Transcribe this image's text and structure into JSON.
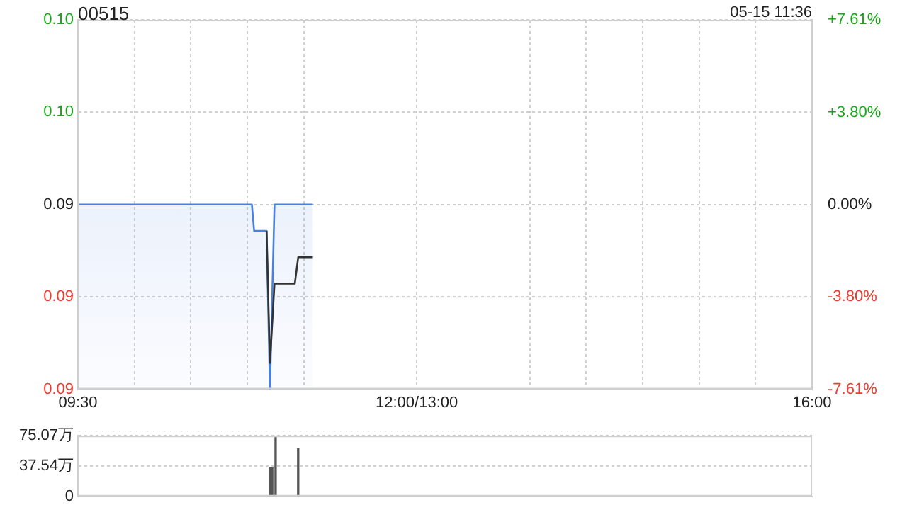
{
  "chart_data": [
    {
      "type": "line",
      "title": "00515",
      "annotations": [
        "05-15 11:36"
      ],
      "xlim": [
        9.5,
        16
      ],
      "xticks": [
        {
          "value": 9.5,
          "label": "09:30"
        },
        {
          "value": 10,
          "label": null
        },
        {
          "value": 10.5,
          "label": null
        },
        {
          "value": 11,
          "label": null
        },
        {
          "value": 11.5,
          "label": null
        },
        {
          "value": 12.5,
          "label": "12:00/13:00"
        },
        {
          "value": 13.5,
          "label": null
        },
        {
          "value": 14,
          "label": null
        },
        {
          "value": 14.5,
          "label": null
        },
        {
          "value": 15,
          "label": null
        },
        {
          "value": 15.5,
          "label": null
        },
        {
          "value": 16,
          "label": "16:00"
        }
      ],
      "ylim": [
        0.085,
        0.099
      ],
      "yticks": [
        {
          "value": 0.085,
          "label": "0.09"
        },
        {
          "value": 0.0885,
          "label": "0.09"
        },
        {
          "value": 0.092,
          "label": "0.09"
        },
        {
          "value": 0.0955,
          "label": "0.10"
        },
        {
          "value": 0.099,
          "label": "0.10"
        }
      ],
      "y2lim": [
        -7.61,
        7.61
      ],
      "y2ticks": [
        {
          "value": -7.61,
          "label": "-7.61%"
        },
        {
          "value": -3.8,
          "label": "-3.80%"
        },
        {
          "value": 0,
          "label": "0.00%"
        },
        {
          "value": 3.8,
          "label": "+3.80%"
        },
        {
          "value": 7.61,
          "label": "+7.61%"
        }
      ],
      "grid": true,
      "legend": false,
      "marker": "none",
      "series": [
        {
          "type": "area",
          "color": "#4a80e0",
          "x": [
            9.5,
            11.04,
            11.06,
            11.17,
            11.2,
            11.24,
            11.58
          ],
          "values": [
            0.092,
            0.092,
            0.091,
            0.091,
            0.085,
            0.092,
            0.092
          ]
        },
        {
          "color": "#333333",
          "x": [
            11.17,
            11.2,
            11.24,
            11.42,
            11.45,
            11.58
          ],
          "values": [
            0.091,
            0.086,
            0.089,
            0.089,
            0.09,
            0.09
          ]
        }
      ]
    },
    {
      "type": "bar",
      "xlim": [
        9.5,
        16
      ],
      "ylim": [
        0,
        75.07
      ],
      "yticks": [
        0,
        {
          "value": 37.54,
          "label": "37.54万"
        },
        {
          "value": 75.07,
          "label": "75.07万"
        }
      ],
      "grid": "y",
      "legend": false,
      "tick_labels": "y",
      "series": [
        {
          "color": "#555555",
          "x": [
            11.2,
            11.22,
            11.25,
            11.45
          ],
          "values": [
            36,
            36,
            75,
            59
          ]
        }
      ]
    }
  ]
}
